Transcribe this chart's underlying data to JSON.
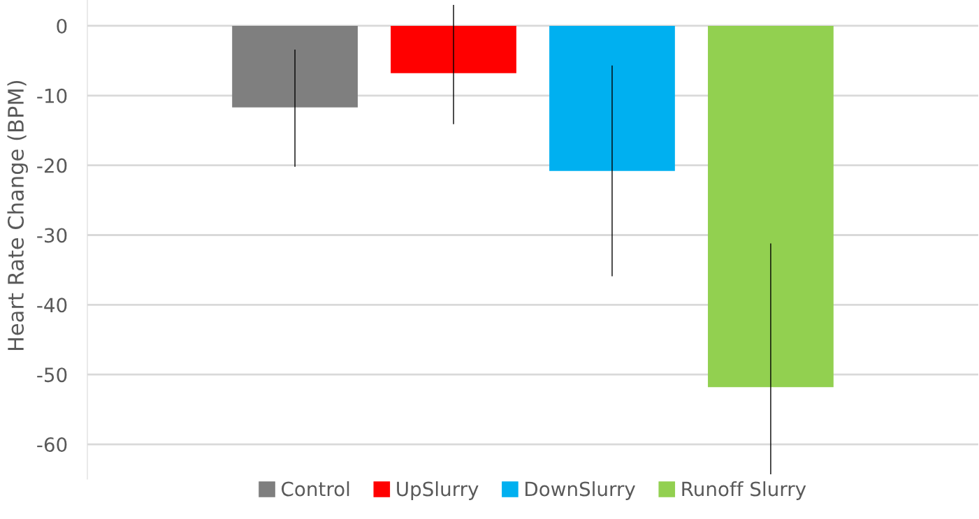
{
  "chart_data": {
    "type": "bar",
    "ylabel": "Heart Rate Change (BPM)",
    "categories": [
      null
    ],
    "series": [
      {
        "name": "Control",
        "color": "#7f7f7f",
        "values": [
          -11.7
        ],
        "errors": [
          [
            -20.2,
            -3.4
          ]
        ]
      },
      {
        "name": "UpSlurry",
        "color": "#ff0000",
        "values": [
          -6.8
        ],
        "errors": [
          [
            -14.1,
            3.0
          ]
        ]
      },
      {
        "name": "DownSlurry",
        "color": "#00b0f0",
        "values": [
          -20.8
        ],
        "errors": [
          [
            -35.9,
            -5.7
          ]
        ]
      },
      {
        "name": "Runoff Slurry",
        "color": "#92d050",
        "values": [
          -51.8
        ],
        "errors": [
          [
            -64.3,
            -31.2
          ]
        ]
      }
    ],
    "ylim": [
      -65,
      3.7
    ],
    "yticks": [
      -60,
      -50,
      -40,
      -30,
      -20,
      -10,
      0
    ],
    "grid": "y",
    "legend": "bottom"
  }
}
